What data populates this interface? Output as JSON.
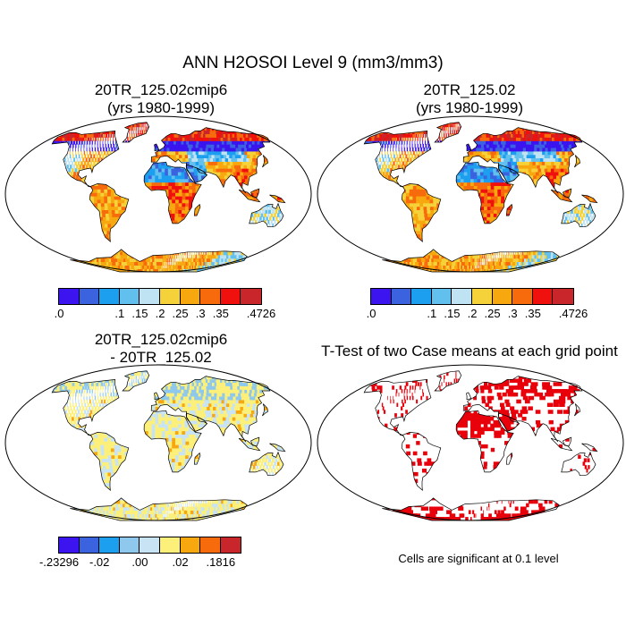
{
  "figure": {
    "title": "ANN H2OSOI Level 9 (mm3/mm3)",
    "note": "Cells are significant at 0.1 level"
  },
  "panels": {
    "a": {
      "title_line1": "20TR_125.02cmip6",
      "title_line2": "(yrs 1980-1999)"
    },
    "b": {
      "title_line1": "20TR_125.02",
      "title_line2": "(yrs 1980-1999)"
    },
    "c": {
      "title_line1": "20TR_125.02cmip6",
      "title_line2": "- 20TR_125.02"
    },
    "d": {
      "title_line1": "T-Test of two Case means at each grid point"
    }
  },
  "colorbars": {
    "absolute": {
      "colors": [
        "#3b14f0",
        "#3b63e0",
        "#1d9ff0",
        "#62c0ee",
        "#bfe3f2",
        "#f5d23a",
        "#f8a80f",
        "#f76b0d",
        "#f0100d",
        "#c8262b"
      ],
      "labels": [
        ".0",
        ".1",
        ".15",
        ".2",
        ".25",
        ".3",
        ".35",
        ".4726"
      ],
      "label_boundaries": [
        0,
        3,
        4,
        5,
        6,
        7,
        8,
        10
      ]
    },
    "difference": {
      "colors": [
        "#3b14f0",
        "#3b63e0",
        "#1d9ff0",
        "#8ec8ec",
        "#c8e4f4",
        "#fdf07a",
        "#f8a80f",
        "#f76b0d",
        "#c8262b"
      ],
      "labels": [
        "-.23296",
        "-.02",
        ".00",
        ".02",
        ".1816"
      ],
      "label_boundaries": [
        0,
        2,
        4,
        6,
        8
      ]
    }
  },
  "colors": {
    "land_outline": "#000000",
    "significant": "#e8000b",
    "no_data": "#ffffff"
  }
}
